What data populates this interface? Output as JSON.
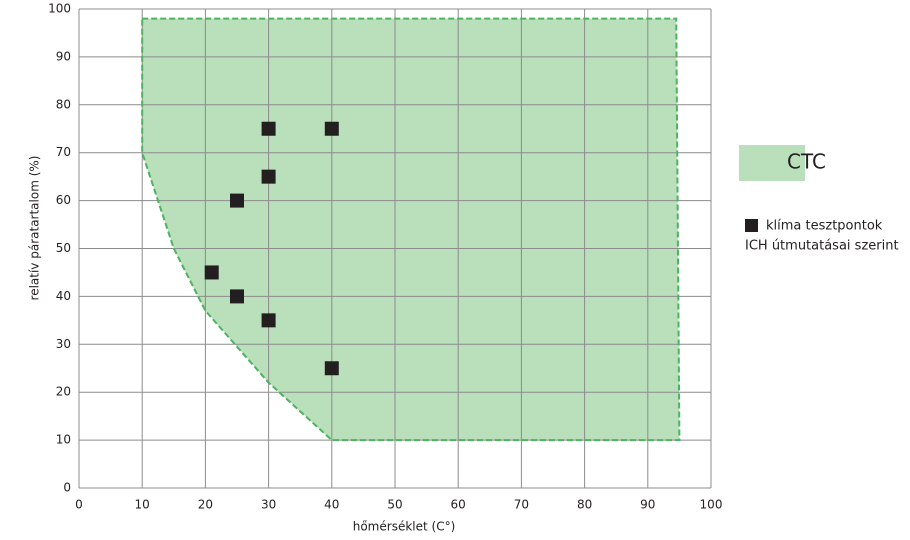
{
  "chart_data": {
    "type": "scatter",
    "xlabel": "hőmérséklet (C°)",
    "ylabel": "relatív páratartalom (%)",
    "xlim": [
      0,
      100
    ],
    "ylim": [
      0,
      100
    ],
    "xticks": [
      0,
      10,
      20,
      30,
      40,
      50,
      60,
      70,
      80,
      90,
      100
    ],
    "yticks": [
      0,
      10,
      20,
      30,
      40,
      50,
      60,
      70,
      80,
      90,
      100
    ],
    "grid": true,
    "series": [
      {
        "name": "CTC",
        "type": "area",
        "color": "#b9dfbb",
        "edge_color": "#4cb360",
        "x": [
          10,
          94.5,
          95,
          40,
          30,
          20,
          15,
          10
        ],
        "y": [
          98,
          98,
          10,
          10,
          22,
          37,
          50,
          70
        ]
      },
      {
        "name": [
          "klíma tesztpontok",
          "ICH útmutatásai szerint"
        ],
        "type": "scatter",
        "color": "#231f20",
        "x": [
          30,
          40,
          30,
          25,
          21,
          25,
          30,
          40
        ],
        "y": [
          75,
          75,
          65,
          60,
          45,
          40,
          35,
          25
        ]
      }
    ]
  }
}
